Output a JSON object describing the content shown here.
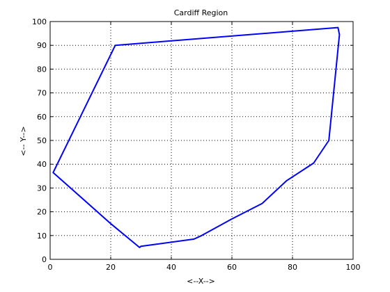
{
  "chart_data": {
    "type": "line",
    "title": "Cardiff Region",
    "xlabel": "<--X-->",
    "ylabel": "<-- Y-->",
    "xlim": [
      0,
      100
    ],
    "ylim": [
      0,
      100
    ],
    "xticks": [
      0,
      20,
      40,
      60,
      80,
      100
    ],
    "yticks": [
      0,
      10,
      20,
      30,
      40,
      50,
      60,
      70,
      80,
      90,
      100
    ],
    "grid": true,
    "series": [
      {
        "color": "#0000ff",
        "x": [
          21.5,
          30.0,
          47.5,
          50.0,
          60.0,
          70.0,
          78.0,
          87.0,
          92.0,
          95.5,
          95.0,
          82.0,
          81.0,
          70.0,
          60.0,
          50.0,
          40.0,
          30.0,
          22.0,
          21.5,
          1.0,
          20.0,
          29.5,
          30.0
        ],
        "y": [
          90.0,
          90.8,
          93.0,
          93.5,
          95.0,
          96.0,
          97.0,
          94.5,
          92.5,
          94.5,
          94.5,
          97.5,
          97.5,
          96.5,
          95.0,
          94.0,
          92.5,
          91.5,
          90.0,
          90.0,
          36.5,
          15.0,
          5.0,
          5.0
        ],
        "comment_note": ""
      }
    ],
    "polygon": {
      "x": [
        21.5,
        95.0,
        95.5,
        92.0,
        87.0,
        78.0,
        70.0,
        60.0,
        50.0,
        47.5,
        30.0,
        29.5,
        20.0,
        1.0,
        21.5
      ],
      "y": [
        90.0,
        97.5,
        94.5,
        50.0,
        40.5,
        33.0,
        23.5,
        17.0,
        10.0,
        8.5,
        5.5,
        5.0,
        15.0,
        36.5,
        90.0
      ]
    }
  }
}
